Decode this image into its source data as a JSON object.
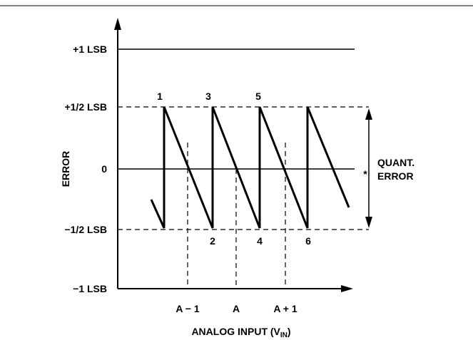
{
  "figure": {
    "y_tick_labels": {
      "plus_one": "+1 LSB",
      "plus_half": "+1/2 LSB",
      "zero": "0",
      "minus_half": "−1/2 LSB",
      "minus_one": "−1 LSB"
    },
    "y_axis_label": "ERROR",
    "x_tick_labels": {
      "a_minus_1": "A − 1",
      "a": "A",
      "a_plus_1": "A + 1"
    },
    "x_axis_label": {
      "main": "ANALOG INPUT (V",
      "subscript": "IN",
      "close": ")"
    },
    "point_labels": [
      "1",
      "2",
      "3",
      "4",
      "5",
      "6"
    ],
    "quant_error_label": {
      "line1": "QUANT.",
      "line2": "ERROR",
      "marker": "*"
    },
    "colors": {
      "ink": "#000000",
      "background": "#ffffff"
    }
  }
}
